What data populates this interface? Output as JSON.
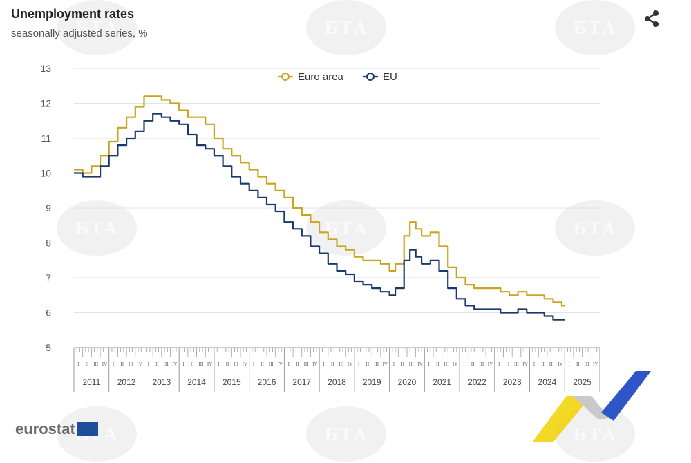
{
  "header": {
    "title": "Unemployment rates",
    "subtitle": "seasonally adjusted series, %"
  },
  "watermark": {
    "text": "БТА"
  },
  "brand": {
    "name": "eurostat"
  },
  "icons": {
    "share": "share-icon"
  },
  "colors": {
    "euro_area": "#c8a51c",
    "eu": "#1b3a6b",
    "grid": "#e3e3e3",
    "axis_text": "#555555"
  },
  "chart_data": {
    "type": "line",
    "title": "Unemployment rates",
    "subtitle": "seasonally adjusted series, %",
    "xlabel": "",
    "ylabel": "",
    "ylim": [
      5,
      13
    ],
    "yticks": [
      5,
      6,
      7,
      8,
      9,
      10,
      11,
      12,
      13
    ],
    "xlim": [
      "2011-01",
      "2025-12"
    ],
    "years": [
      "2011",
      "2012",
      "2013",
      "2014",
      "2015",
      "2016",
      "2017",
      "2018",
      "2019",
      "2020",
      "2021",
      "2022",
      "2023",
      "2024",
      "2025"
    ],
    "quarter_labels": [
      "I",
      "II",
      "III",
      "IV"
    ],
    "legend_position": "top-center",
    "grid": true,
    "series": [
      {
        "name": "Euro area",
        "color": "#c8a51c",
        "points": [
          [
            "2011-01",
            10.1
          ],
          [
            "2011-04",
            10.0
          ],
          [
            "2011-07",
            10.2
          ],
          [
            "2011-10",
            10.5
          ],
          [
            "2012-01",
            10.9
          ],
          [
            "2012-04",
            11.3
          ],
          [
            "2012-07",
            11.6
          ],
          [
            "2012-10",
            11.9
          ],
          [
            "2013-01",
            12.2
          ],
          [
            "2013-04",
            12.2
          ],
          [
            "2013-07",
            12.1
          ],
          [
            "2013-10",
            12.0
          ],
          [
            "2014-01",
            11.8
          ],
          [
            "2014-04",
            11.6
          ],
          [
            "2014-07",
            11.6
          ],
          [
            "2014-10",
            11.4
          ],
          [
            "2015-01",
            11.0
          ],
          [
            "2015-04",
            10.7
          ],
          [
            "2015-07",
            10.5
          ],
          [
            "2015-10",
            10.3
          ],
          [
            "2016-01",
            10.1
          ],
          [
            "2016-04",
            9.9
          ],
          [
            "2016-07",
            9.7
          ],
          [
            "2016-10",
            9.5
          ],
          [
            "2017-01",
            9.3
          ],
          [
            "2017-04",
            9.0
          ],
          [
            "2017-07",
            8.8
          ],
          [
            "2017-10",
            8.6
          ],
          [
            "2018-01",
            8.3
          ],
          [
            "2018-04",
            8.1
          ],
          [
            "2018-07",
            7.9
          ],
          [
            "2018-10",
            7.8
          ],
          [
            "2019-01",
            7.6
          ],
          [
            "2019-04",
            7.5
          ],
          [
            "2019-07",
            7.5
          ],
          [
            "2019-10",
            7.4
          ],
          [
            "2020-01",
            7.2
          ],
          [
            "2020-03",
            7.4
          ],
          [
            "2020-06",
            8.2
          ],
          [
            "2020-08",
            8.6
          ],
          [
            "2020-10",
            8.4
          ],
          [
            "2020-12",
            8.2
          ],
          [
            "2021-03",
            8.3
          ],
          [
            "2021-06",
            7.9
          ],
          [
            "2021-09",
            7.3
          ],
          [
            "2021-12",
            7.0
          ],
          [
            "2022-03",
            6.8
          ],
          [
            "2022-06",
            6.7
          ],
          [
            "2022-09",
            6.7
          ],
          [
            "2022-12",
            6.7
          ],
          [
            "2023-03",
            6.6
          ],
          [
            "2023-06",
            6.5
          ],
          [
            "2023-09",
            6.6
          ],
          [
            "2023-12",
            6.5
          ],
          [
            "2024-03",
            6.5
          ],
          [
            "2024-06",
            6.4
          ],
          [
            "2024-09",
            6.3
          ],
          [
            "2024-12",
            6.2
          ],
          [
            "2025-01",
            6.2
          ]
        ]
      },
      {
        "name": "EU",
        "color": "#1b3a6b",
        "points": [
          [
            "2011-01",
            10.0
          ],
          [
            "2011-04",
            9.9
          ],
          [
            "2011-07",
            9.9
          ],
          [
            "2011-10",
            10.2
          ],
          [
            "2012-01",
            10.5
          ],
          [
            "2012-04",
            10.8
          ],
          [
            "2012-07",
            11.0
          ],
          [
            "2012-10",
            11.2
          ],
          [
            "2013-01",
            11.5
          ],
          [
            "2013-04",
            11.7
          ],
          [
            "2013-07",
            11.6
          ],
          [
            "2013-10",
            11.5
          ],
          [
            "2014-01",
            11.4
          ],
          [
            "2014-04",
            11.1
          ],
          [
            "2014-07",
            10.8
          ],
          [
            "2014-10",
            10.7
          ],
          [
            "2015-01",
            10.5
          ],
          [
            "2015-04",
            10.2
          ],
          [
            "2015-07",
            9.9
          ],
          [
            "2015-10",
            9.7
          ],
          [
            "2016-01",
            9.5
          ],
          [
            "2016-04",
            9.3
          ],
          [
            "2016-07",
            9.1
          ],
          [
            "2016-10",
            8.9
          ],
          [
            "2017-01",
            8.6
          ],
          [
            "2017-04",
            8.4
          ],
          [
            "2017-07",
            8.2
          ],
          [
            "2017-10",
            7.9
          ],
          [
            "2018-01",
            7.7
          ],
          [
            "2018-04",
            7.4
          ],
          [
            "2018-07",
            7.2
          ],
          [
            "2018-10",
            7.1
          ],
          [
            "2019-01",
            6.9
          ],
          [
            "2019-04",
            6.8
          ],
          [
            "2019-07",
            6.7
          ],
          [
            "2019-10",
            6.6
          ],
          [
            "2020-01",
            6.5
          ],
          [
            "2020-03",
            6.7
          ],
          [
            "2020-06",
            7.5
          ],
          [
            "2020-08",
            7.8
          ],
          [
            "2020-10",
            7.6
          ],
          [
            "2020-12",
            7.4
          ],
          [
            "2021-03",
            7.5
          ],
          [
            "2021-06",
            7.2
          ],
          [
            "2021-09",
            6.7
          ],
          [
            "2021-12",
            6.4
          ],
          [
            "2022-03",
            6.2
          ],
          [
            "2022-06",
            6.1
          ],
          [
            "2022-09",
            6.1
          ],
          [
            "2022-12",
            6.1
          ],
          [
            "2023-03",
            6.0
          ],
          [
            "2023-06",
            6.0
          ],
          [
            "2023-09",
            6.1
          ],
          [
            "2023-12",
            6.0
          ],
          [
            "2024-03",
            6.0
          ],
          [
            "2024-06",
            5.9
          ],
          [
            "2024-09",
            5.8
          ],
          [
            "2024-12",
            5.8
          ],
          [
            "2025-01",
            5.8
          ]
        ]
      }
    ]
  }
}
